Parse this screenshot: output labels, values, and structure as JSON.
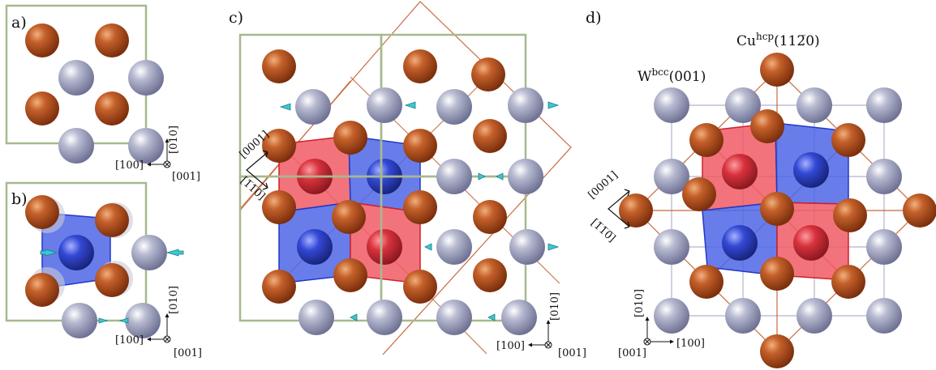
{
  "panels": {
    "a": {
      "label": "a)",
      "axes": {
        "vertical": "[010]",
        "horizontal": "[100]",
        "normal": "[001]"
      }
    },
    "b": {
      "label": "b)",
      "axes": {
        "vertical": "[010]",
        "horizontal": "[100]",
        "normal": "[001]"
      }
    },
    "c": {
      "label": "c)",
      "axes": {
        "vertical": "[010]",
        "horizontal": "[100]",
        "normal": "[001]"
      },
      "directions": {
        "up": "[0001]",
        "down": "[1̅1̅0̅]"
      }
    },
    "d": {
      "label": "d)",
      "axes": {
        "vertical": "[010]",
        "horizontal": "[100]",
        "normal": "[001]"
      },
      "directions": {
        "up": "[0001]",
        "down": "[1̅1̅0̅]"
      },
      "titles": {
        "w": {
          "base": "W",
          "sup": "bcc",
          "rest": "(001)"
        },
        "cu": {
          "base": "Cu",
          "sup": "hcp",
          "rest": "(112̅0)"
        }
      }
    }
  },
  "colors": {
    "copper": "#b4501c",
    "tungsten": "#9a9db8",
    "frame": "#a6b98e",
    "red_tile": "#f05a64",
    "blue_tile": "#4e66e6",
    "cu_line": "#c86a40",
    "arrow": "#39c8d0"
  }
}
